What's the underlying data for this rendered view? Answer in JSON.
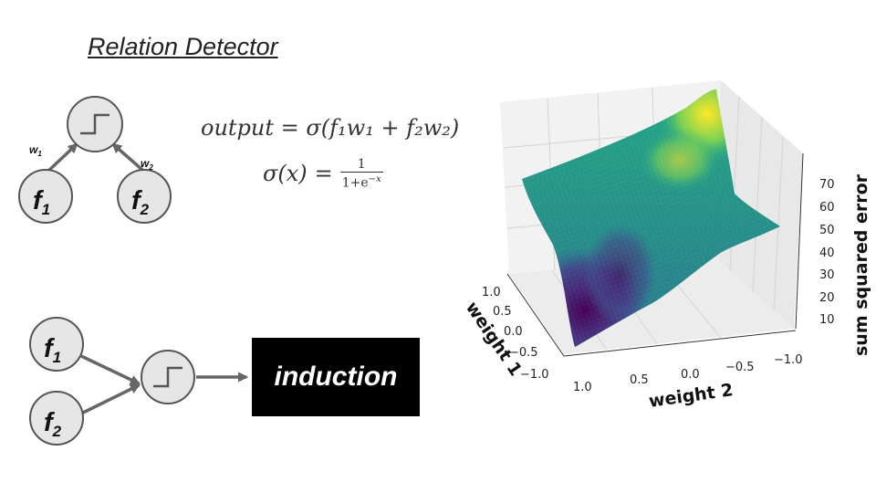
{
  "title": "Relation Detector",
  "top_diagram": {
    "inputs": [
      {
        "name": "f",
        "sub": "1"
      },
      {
        "name": "f",
        "sub": "2"
      }
    ],
    "weights": [
      {
        "name": "w",
        "sub": "1"
      },
      {
        "name": "w",
        "sub": "2"
      }
    ],
    "node": "step-function"
  },
  "equations": {
    "line1": {
      "lhs": "output",
      "rhs": "σ(f₁w₁ + f₂w₂)"
    },
    "line2": {
      "lhs": "σ(x)",
      "numerator": "1",
      "denominator": "1+e",
      "exponent": "−x"
    }
  },
  "bottom_diagram": {
    "inputs": [
      {
        "name": "f",
        "sub": "1"
      },
      {
        "name": "f",
        "sub": "2"
      }
    ],
    "output_label": "induction"
  },
  "chart_data": {
    "type": "surface",
    "title": "",
    "xlabel": "weight 2",
    "ylabel": "weight 1",
    "zlabel": "sum squared error",
    "x_ticks": [
      "1.0",
      "0.5",
      "0.0",
      "−0.5",
      "−1.0"
    ],
    "y_ticks": [
      "1.0",
      "0.5",
      "0.0",
      "−0.5",
      "−1.0"
    ],
    "z_ticks": [
      "10",
      "20",
      "30",
      "40",
      "50",
      "60",
      "70"
    ],
    "xlim": [
      -1.0,
      1.0
    ],
    "ylim": [
      -1.0,
      1.0
    ],
    "zlim": [
      0,
      78
    ],
    "colormap": "viridis",
    "grid": true
  }
}
